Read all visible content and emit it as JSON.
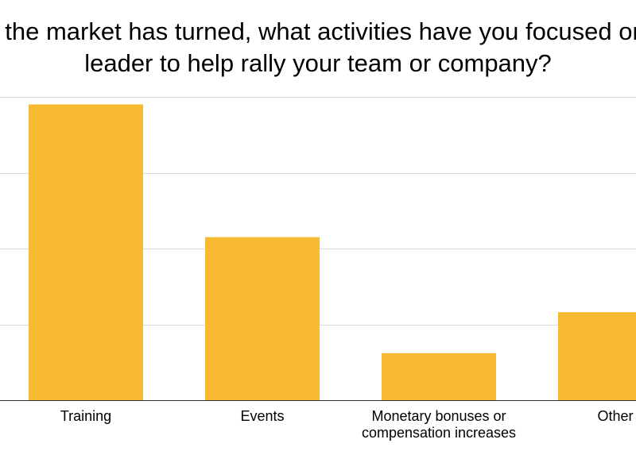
{
  "chart_data": {
    "type": "bar",
    "title_lines": [
      "Since the market has turned, what activities have you focused on as a",
      "leader to help rally your team or company?"
    ],
    "categories": [
      [
        "Training"
      ],
      [
        "Events"
      ],
      [
        "Monetary bonuses or",
        "compensation increases"
      ],
      [
        "Other"
      ]
    ],
    "values": [
      39,
      21.5,
      6.2,
      11.6
    ],
    "ylim": [
      0,
      40
    ],
    "y_gridlines": [
      0,
      10,
      20,
      30,
      40
    ],
    "grid": true,
    "legend": "none",
    "bar_color": "#f6b92f",
    "gridline_color": "#d9d9d9"
  }
}
